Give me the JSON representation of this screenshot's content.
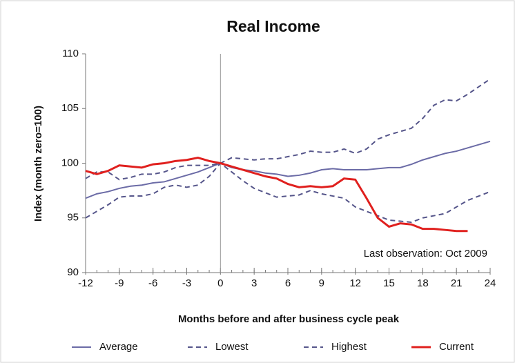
{
  "chart_data": {
    "type": "line",
    "title": "Real Income",
    "x_label": "Months before and after business cycle peak",
    "y_label": "Index (month zero=100)",
    "annotation": "Last observation: Oct 2009",
    "x": [
      -12,
      -11,
      -10,
      -9,
      -8,
      -7,
      -6,
      -5,
      -4,
      -3,
      -2,
      -1,
      0,
      1,
      2,
      3,
      4,
      5,
      6,
      7,
      8,
      9,
      10,
      11,
      12,
      13,
      14,
      15,
      16,
      17,
      18,
      19,
      20,
      21,
      22,
      23,
      24
    ],
    "xlim": [
      -12,
      24
    ],
    "xticks": [
      -12,
      -9,
      -6,
      -3,
      0,
      3,
      6,
      9,
      12,
      15,
      18,
      21,
      24
    ],
    "ylim": [
      90,
      110
    ],
    "yticks": [
      90,
      95,
      100,
      105,
      110
    ],
    "vline": 0,
    "legend": "bottom",
    "series": [
      {
        "name": "Average",
        "color": "#6b6ba6",
        "style": "solid",
        "values": [
          96.8,
          97.2,
          97.4,
          97.7,
          97.9,
          98.0,
          98.2,
          98.3,
          98.6,
          98.9,
          99.2,
          99.6,
          100,
          99.6,
          99.4,
          99.3,
          99.1,
          99.0,
          98.8,
          98.9,
          99.1,
          99.4,
          99.5,
          99.4,
          99.4,
          99.4,
          99.5,
          99.6,
          99.6,
          99.9,
          100.3,
          100.6,
          100.9,
          101.1,
          101.4,
          101.7,
          102.0
        ]
      },
      {
        "name": "Lowest",
        "color": "#55558a",
        "style": "dashed",
        "values": [
          95.0,
          95.6,
          96.2,
          96.9,
          97.0,
          97.0,
          97.2,
          97.8,
          98.0,
          97.8,
          98.0,
          98.8,
          100,
          99.2,
          98.4,
          97.7,
          97.3,
          96.9,
          97.0,
          97.1,
          97.5,
          97.2,
          97.0,
          96.8,
          96.0,
          95.6,
          95.2,
          94.8,
          94.7,
          94.6,
          95.0,
          95.2,
          95.4,
          96.0,
          96.6,
          97.0,
          97.4
        ]
      },
      {
        "name": "Highest",
        "color": "#55558a",
        "style": "dashed",
        "values": [
          98.6,
          99.2,
          99.2,
          98.5,
          98.7,
          99.0,
          99.0,
          99.2,
          99.6,
          99.8,
          99.8,
          99.8,
          100,
          100.5,
          100.4,
          100.3,
          100.4,
          100.4,
          100.6,
          100.8,
          101.1,
          101.0,
          101.0,
          101.3,
          100.9,
          101.3,
          102.2,
          102.6,
          102.9,
          103.2,
          104.1,
          105.3,
          105.8,
          105.7,
          106.3,
          107.0,
          107.7
        ]
      },
      {
        "name": "Current",
        "color": "#e0201e",
        "style": "solid",
        "values": [
          99.3,
          99.0,
          99.3,
          99.8,
          99.7,
          99.6,
          99.9,
          100.0,
          100.2,
          100.3,
          100.5,
          100.2,
          100.0,
          99.7,
          99.4,
          99.1,
          98.8,
          98.6,
          98.1,
          97.8,
          97.9,
          97.8,
          97.9,
          98.6,
          98.5,
          96.8,
          95.0,
          94.2,
          94.5,
          94.4,
          94.0,
          94.0,
          93.9,
          93.8,
          93.8,
          null,
          null
        ]
      }
    ]
  }
}
